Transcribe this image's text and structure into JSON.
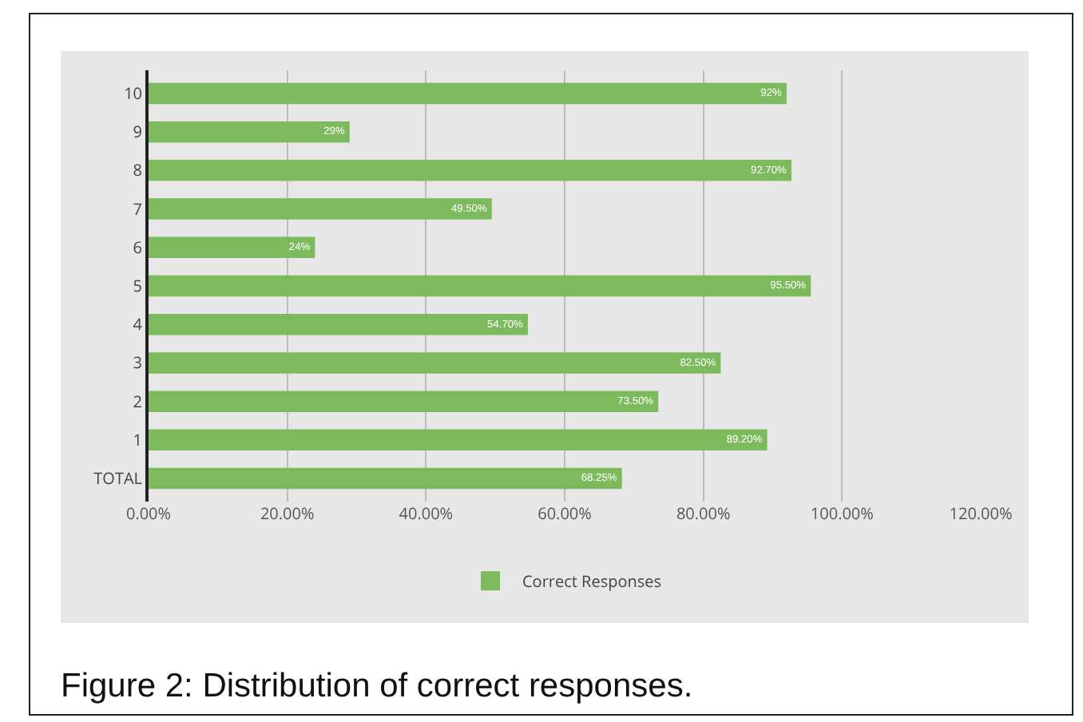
{
  "chart_data": {
    "type": "bar",
    "orientation": "horizontal",
    "categories": [
      "10",
      "9",
      "8",
      "7",
      "6",
      "5",
      "4",
      "3",
      "2",
      "1",
      "TOTAL"
    ],
    "series": [
      {
        "name": "Correct Responses",
        "color": "#7dba5e",
        "values": [
          92,
          29,
          92.7,
          49.5,
          24,
          95.5,
          54.7,
          82.5,
          73.5,
          89.2,
          68.25
        ],
        "value_labels": [
          "92%",
          "29%",
          "92.70%",
          "49.50%",
          "24%",
          "95.50%",
          "54.70%",
          "82.50%",
          "73.50%",
          "89.20%",
          "68.25%"
        ]
      }
    ],
    "xlim": [
      0,
      120
    ],
    "xticks": [
      {
        "value": 0,
        "label": "0.00%"
      },
      {
        "value": 20,
        "label": "20.00%"
      },
      {
        "value": 40,
        "label": "40.00%"
      },
      {
        "value": 60,
        "label": "60.00%"
      },
      {
        "value": 80,
        "label": "80.00%"
      },
      {
        "value": 100,
        "label": "100.00%"
      },
      {
        "value": 120,
        "label": "120.00%"
      }
    ],
    "grid": "x",
    "legend": "bottom",
    "annotations": [
      "Figure 2: Distribution of correct responses."
    ]
  }
}
